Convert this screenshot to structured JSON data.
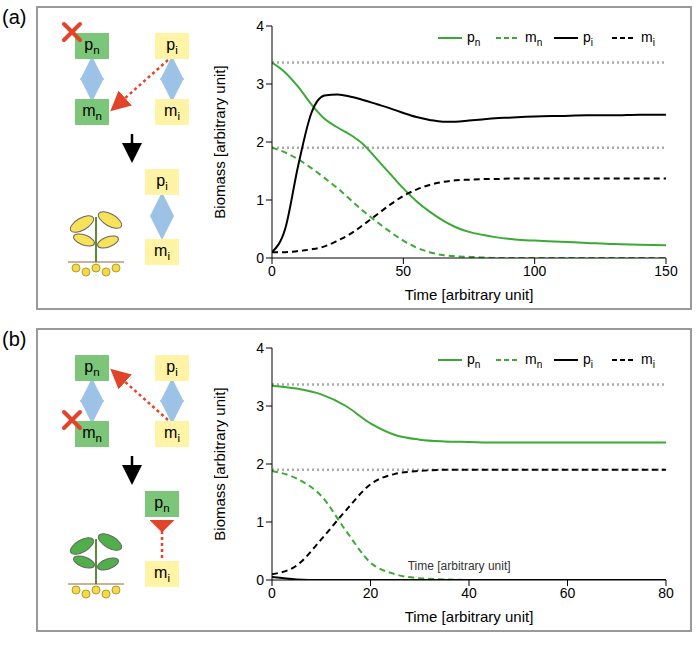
{
  "chart_data": [
    {
      "label": "(a)",
      "type": "line",
      "xlabel": "Time [arbitrary unit]",
      "ylabel": "Biomass [arbitrary unit]",
      "x": [
        0,
        5,
        10,
        15,
        20,
        25,
        30,
        35,
        40,
        45,
        50,
        55,
        60,
        65,
        70,
        75,
        80,
        85,
        90,
        95,
        100,
        110,
        120,
        130,
        140,
        150
      ],
      "series": [
        {
          "name": "pn",
          "color": "#3aaa35",
          "line_style": "solid",
          "values": [
            3.37,
            3.2,
            2.95,
            2.65,
            2.4,
            2.25,
            2.12,
            1.95,
            1.7,
            1.45,
            1.2,
            0.98,
            0.8,
            0.65,
            0.53,
            0.45,
            0.4,
            0.36,
            0.33,
            0.31,
            0.3,
            0.28,
            0.26,
            0.24,
            0.23,
            0.22
          ]
        },
        {
          "name": "mn",
          "color": "#3aaa35",
          "line_style": "dashed",
          "values": [
            1.9,
            1.82,
            1.7,
            1.55,
            1.38,
            1.2,
            1.0,
            0.8,
            0.62,
            0.45,
            0.3,
            0.18,
            0.1,
            0.05,
            0.03,
            0.02,
            0.01,
            0,
            0,
            0,
            0,
            0,
            0,
            0,
            0,
            0
          ]
        },
        {
          "name": "pi",
          "color": "#000000",
          "line_style": "solid",
          "values": [
            0.1,
            0.5,
            1.6,
            2.5,
            2.8,
            2.82,
            2.78,
            2.72,
            2.65,
            2.58,
            2.5,
            2.43,
            2.38,
            2.35,
            2.35,
            2.37,
            2.39,
            2.41,
            2.42,
            2.43,
            2.44,
            2.45,
            2.46,
            2.46,
            2.47,
            2.47
          ]
        },
        {
          "name": "mi",
          "color": "#000000",
          "line_style": "dashed",
          "values": [
            0.1,
            0.1,
            0.12,
            0.15,
            0.2,
            0.3,
            0.42,
            0.58,
            0.75,
            0.92,
            1.07,
            1.18,
            1.26,
            1.31,
            1.34,
            1.35,
            1.36,
            1.36,
            1.37,
            1.37,
            1.37,
            1.37,
            1.37,
            1.37,
            1.37,
            1.37
          ]
        }
      ],
      "xlim": [
        0,
        150
      ],
      "xticks": [
        0,
        50,
        100,
        150
      ],
      "ylim": [
        0,
        4
      ],
      "yticks": [
        0,
        1,
        2,
        3,
        4
      ],
      "reference_lines": [
        3.37,
        1.9
      ],
      "legend": "top right",
      "diagram": {
        "nodes": [
          "pn",
          "mn",
          "pi",
          "mi"
        ],
        "knockout": "pn",
        "result": [
          "pi",
          "mi"
        ]
      }
    },
    {
      "label": "(b)",
      "type": "line",
      "xlabel": "Time [arbitrary unit]",
      "ylabel": "Biomass [arbitrary unit]",
      "x": [
        0,
        5,
        10,
        15,
        20,
        25,
        30,
        35,
        40,
        45,
        50,
        55,
        60,
        65,
        70,
        75,
        80
      ],
      "series": [
        {
          "name": "pn",
          "color": "#3aaa35",
          "line_style": "solid",
          "values": [
            3.35,
            3.3,
            3.2,
            3.0,
            2.7,
            2.5,
            2.42,
            2.39,
            2.38,
            2.37,
            2.37,
            2.37,
            2.37,
            2.37,
            2.37,
            2.37,
            2.37
          ]
        },
        {
          "name": "mn",
          "color": "#3aaa35",
          "line_style": "dashed",
          "values": [
            1.88,
            1.75,
            1.45,
            0.85,
            0.3,
            0.1,
            0.03,
            0.01,
            0,
            0,
            0,
            0,
            0,
            0,
            0,
            0,
            0
          ]
        },
        {
          "name": "pi",
          "color": "#000000",
          "line_style": "solid",
          "values": [
            0.05,
            0.01,
            0,
            0,
            0,
            0,
            0,
            0,
            0,
            0,
            0,
            0,
            0,
            0,
            0,
            0,
            0
          ]
        },
        {
          "name": "mi",
          "color": "#000000",
          "line_style": "dashed",
          "values": [
            0.1,
            0.25,
            0.7,
            1.2,
            1.65,
            1.83,
            1.88,
            1.9,
            1.9,
            1.9,
            1.9,
            1.9,
            1.9,
            1.9,
            1.9,
            1.9,
            1.9
          ]
        }
      ],
      "xlim": [
        0,
        80
      ],
      "xticks": [
        0,
        20,
        40,
        60,
        80
      ],
      "ylim": [
        0,
        4
      ],
      "yticks": [
        0,
        1,
        2,
        3,
        4
      ],
      "reference_lines": [
        3.37,
        1.9
      ],
      "legend": "top right",
      "annotations": [
        {
          "text": "Time [arbitrary unit]",
          "x": 38,
          "y": 0.25
        }
      ],
      "diagram": {
        "nodes": [
          "pn",
          "mn",
          "pi",
          "mi"
        ],
        "knockout": "mn",
        "result": [
          "pn",
          "mi"
        ]
      }
    }
  ]
}
